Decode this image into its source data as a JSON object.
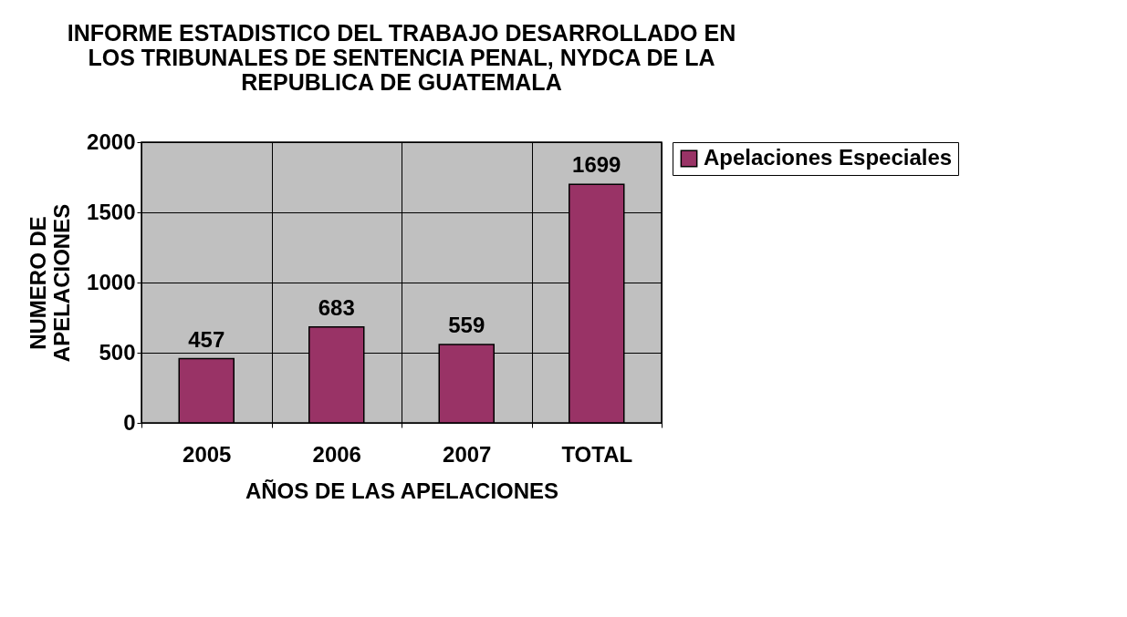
{
  "chart_data": {
    "type": "bar",
    "title": "INFORME ESTADISTICO DEL TRABAJO DESARROLLADO EN LOS TRIBUNALES DE SENTENCIA PENAL, NYDCA DE LA REPUBLICA DE GUATEMALA",
    "xlabel": "AÑOS DE LAS APELACIONES",
    "ylabel": "NUMERO DE APELACIONES",
    "categories": [
      "2005",
      "2006",
      "2007",
      "TOTAL"
    ],
    "series": [
      {
        "name": "Apelaciones Especiales",
        "color": "#993366",
        "values": [
          457,
          683,
          559,
          1699
        ]
      }
    ],
    "ylim": [
      0,
      2000
    ],
    "yticks": [
      0,
      500,
      1000,
      1500,
      2000
    ],
    "grid": true,
    "legend": "right",
    "data_labels": true
  }
}
